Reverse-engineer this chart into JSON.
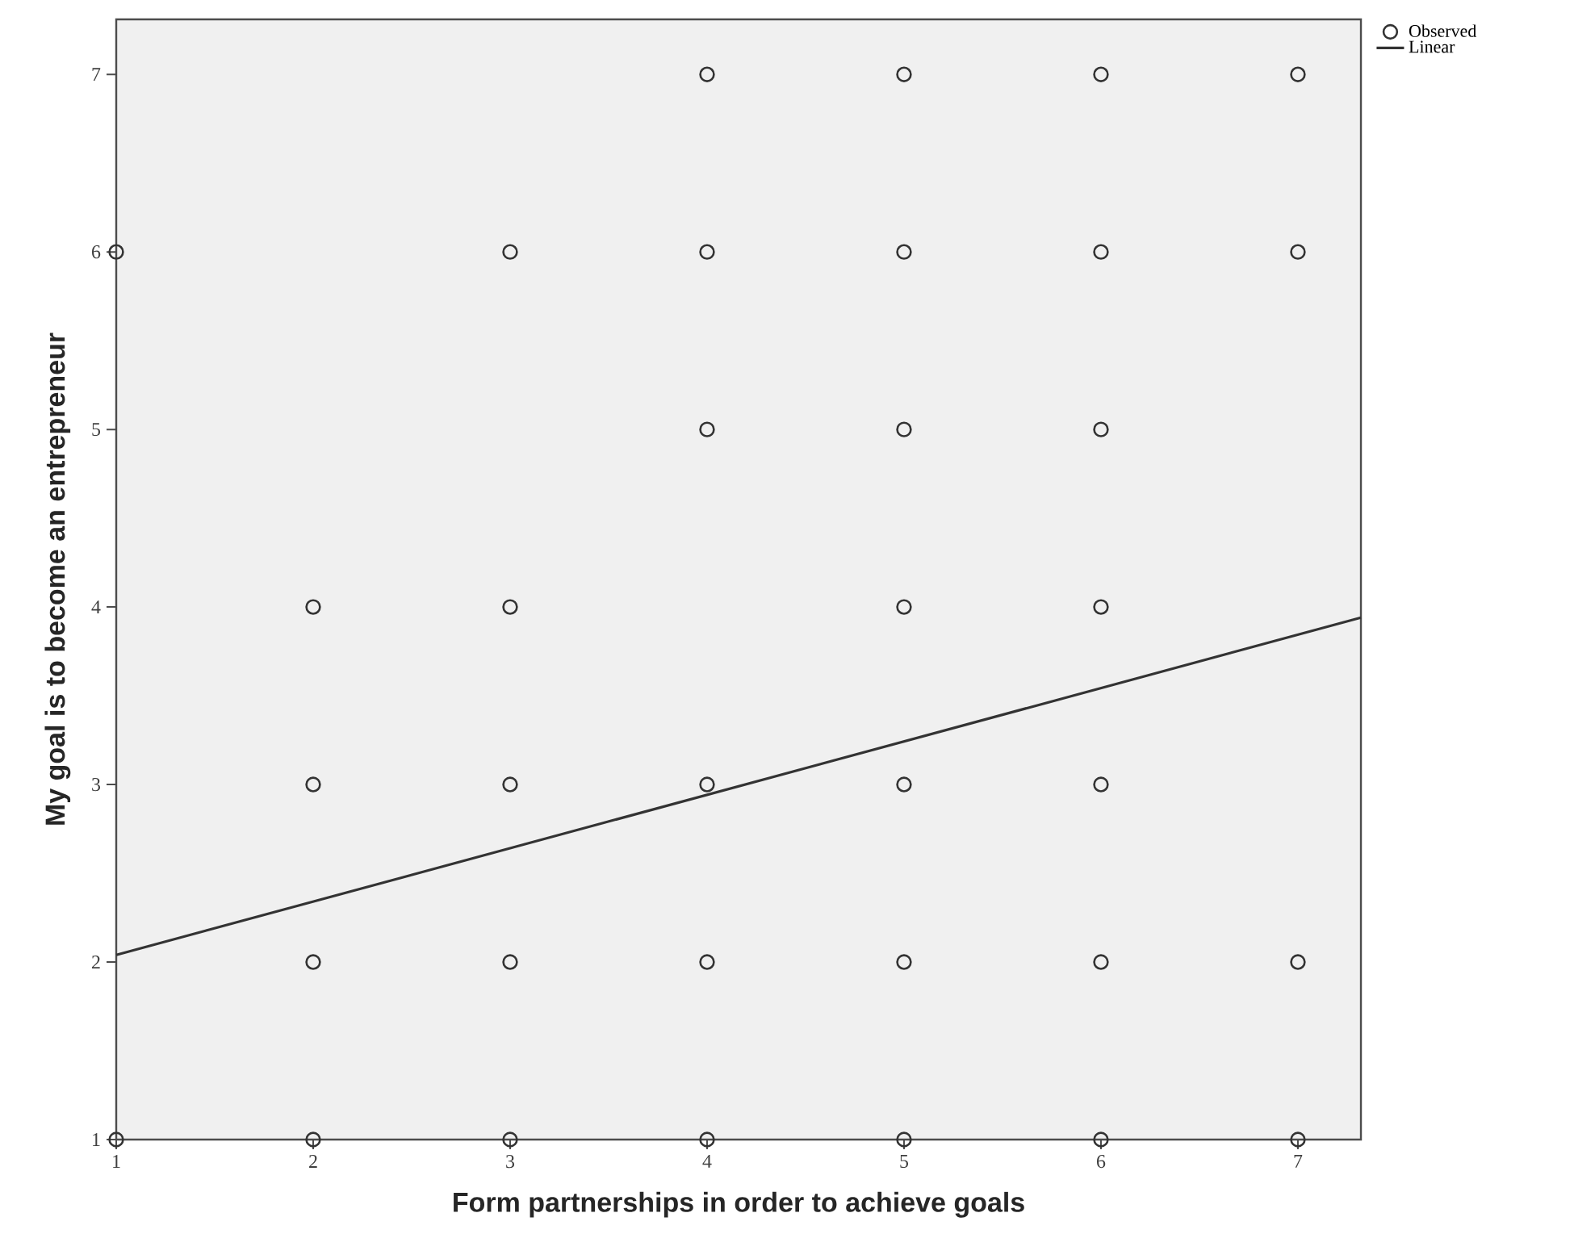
{
  "chart_data": {
    "type": "scatter",
    "xlabel": "Form partnerships in order to achieve goals",
    "ylabel": "My goal is to become an entrepreneur",
    "xlim": [
      1,
      7.32
    ],
    "ylim": [
      1,
      7.31
    ],
    "xticks": [
      1,
      2,
      3,
      4,
      5,
      6,
      7
    ],
    "yticks": [
      1,
      2,
      3,
      4,
      5,
      6,
      7
    ],
    "grid": false,
    "legend": "top right",
    "marker": "circle",
    "series": [
      {
        "name": "Observed",
        "color": "#333333",
        "x": [
          4,
          5,
          6,
          7,
          1,
          3,
          4,
          5,
          6,
          7,
          4,
          5,
          6,
          2,
          3,
          5,
          6,
          2,
          3,
          4,
          5,
          6,
          2,
          3,
          4,
          5,
          6,
          7,
          1,
          2,
          3,
          4,
          5,
          6,
          7
        ],
        "values": [
          7,
          7,
          7,
          7,
          6,
          6,
          6,
          6,
          6,
          6,
          5,
          5,
          5,
          4,
          4,
          4,
          4,
          3,
          3,
          3,
          3,
          3,
          2,
          2,
          2,
          2,
          2,
          2,
          1,
          1,
          1,
          1,
          1,
          1,
          1
        ]
      },
      {
        "name": "Linear",
        "type": "line",
        "color": "#333333",
        "line_style": "solid",
        "marker": "none",
        "x": [
          1,
          7.32
        ],
        "values": [
          2.04,
          3.94
        ]
      }
    ]
  }
}
